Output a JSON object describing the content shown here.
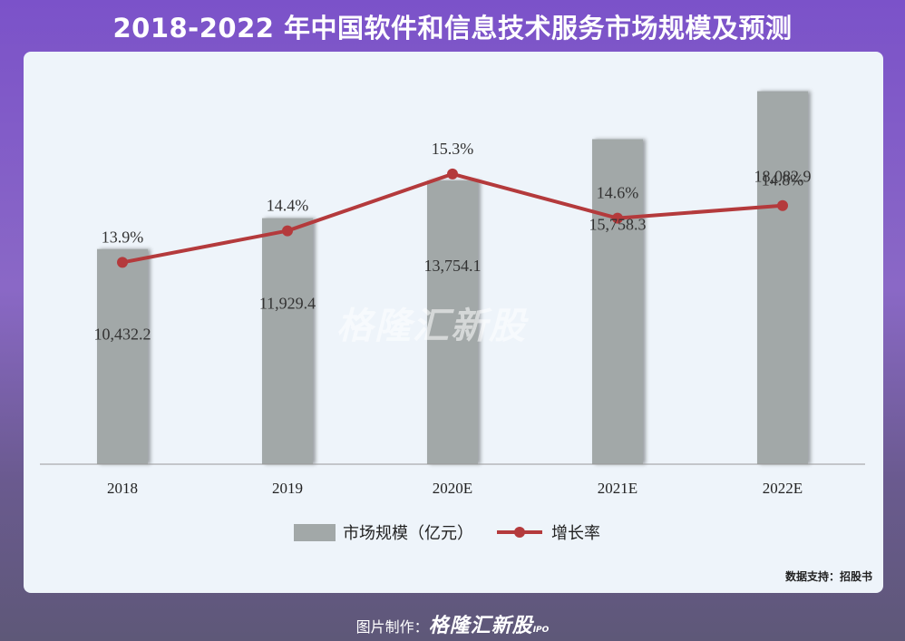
{
  "title": "2018-2022 年中国软件和信息技术服务市场规模及预测",
  "source": "数据支持：招股书",
  "watermark": "格隆汇新股",
  "credit": {
    "prefix": "图片制作：",
    "logo": "格隆汇新股",
    "logo_suffix": "IPO"
  },
  "colors": {
    "bar": "#a2a8a8",
    "line": "#b43a3c",
    "background": "#eef4fa"
  },
  "chart_data": {
    "type": "bar",
    "categories": [
      "2018",
      "2019",
      "2020E",
      "2021E",
      "2022E"
    ],
    "series": [
      {
        "name": "市场规模（亿元）",
        "type": "bar",
        "axis": "left",
        "values": [
          10432.2,
          11929.4,
          13754.1,
          15758.3,
          18082.9
        ],
        "labels": [
          "10,432.2",
          "11,929.4",
          "13,754.1",
          "15,758.3",
          "18,082.9"
        ]
      },
      {
        "name": "增长率",
        "type": "line",
        "axis": "right",
        "values": [
          13.9,
          14.4,
          15.3,
          14.6,
          14.8
        ],
        "labels": [
          "13.9%",
          "14.4%",
          "15.3%",
          "14.6%",
          "14.8%"
        ]
      }
    ],
    "ylim_left": [
      0,
      20000
    ],
    "ylim_right": [
      12.5,
      15.8
    ],
    "legend": "bottom",
    "grid": false
  }
}
